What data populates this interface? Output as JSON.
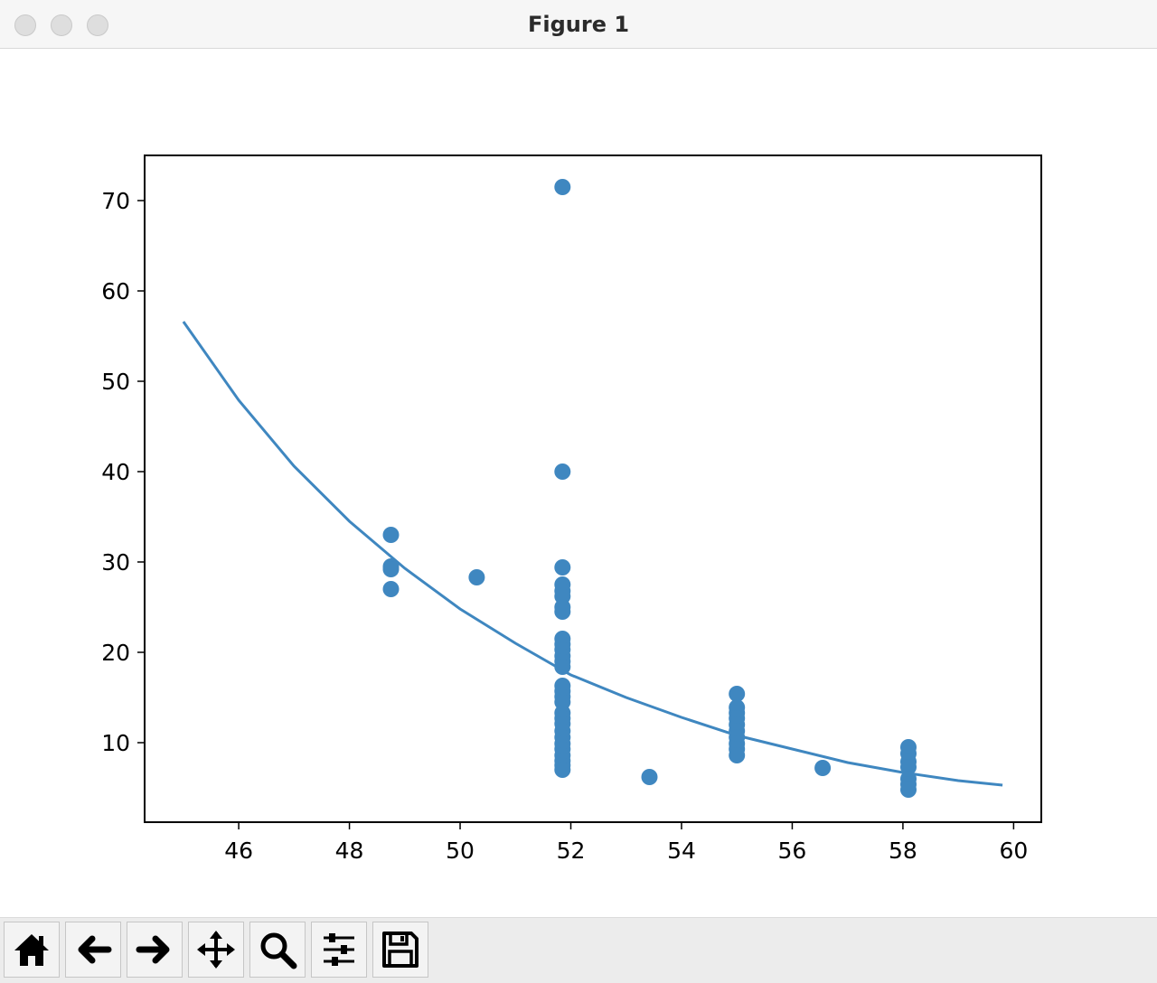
{
  "window": {
    "title": "Figure 1"
  },
  "toolbar": {
    "buttons": [
      {
        "name": "home",
        "icon": "home-icon"
      },
      {
        "name": "back",
        "icon": "arrow-left-icon"
      },
      {
        "name": "forward",
        "icon": "arrow-right-icon"
      },
      {
        "name": "pan",
        "icon": "move-icon"
      },
      {
        "name": "zoom",
        "icon": "magnifier-icon"
      },
      {
        "name": "configure-subplots",
        "icon": "sliders-icon"
      },
      {
        "name": "save",
        "icon": "floppy-disk-icon"
      }
    ]
  },
  "chart_data": {
    "type": "scatter",
    "title": "",
    "xlabel": "",
    "ylabel": "",
    "xlim": [
      44.3,
      60.5
    ],
    "ylim": [
      1.2,
      75
    ],
    "xticks": [
      46,
      48,
      50,
      52,
      54,
      56,
      58,
      60
    ],
    "yticks": [
      10,
      20,
      30,
      40,
      50,
      60,
      70
    ],
    "grid": false,
    "color": "#3f87c0",
    "series": [
      {
        "kind": "scatter",
        "points": [
          [
            48.75,
            33.0
          ],
          [
            48.75,
            29.5
          ],
          [
            48.75,
            29.2
          ],
          [
            48.75,
            27.0
          ],
          [
            50.3,
            28.3
          ],
          [
            51.85,
            71.5
          ],
          [
            51.85,
            40.0
          ],
          [
            51.85,
            29.4
          ],
          [
            51.85,
            27.5
          ],
          [
            51.85,
            26.8
          ],
          [
            51.85,
            26.2
          ],
          [
            51.85,
            25.0
          ],
          [
            51.85,
            24.5
          ],
          [
            51.85,
            21.5
          ],
          [
            51.85,
            20.9
          ],
          [
            51.85,
            20.3
          ],
          [
            51.85,
            19.6
          ],
          [
            51.85,
            19.0
          ],
          [
            51.85,
            18.4
          ],
          [
            51.85,
            16.3
          ],
          [
            51.85,
            15.7
          ],
          [
            51.85,
            15.1
          ],
          [
            51.85,
            14.5
          ],
          [
            51.85,
            13.3
          ],
          [
            51.85,
            12.7
          ],
          [
            51.85,
            12.1
          ],
          [
            51.85,
            11.3
          ],
          [
            51.85,
            10.6
          ],
          [
            51.85,
            9.9
          ],
          [
            51.85,
            9.3
          ],
          [
            51.85,
            8.6
          ],
          [
            51.85,
            8.0
          ],
          [
            51.85,
            7.5
          ],
          [
            51.85,
            7.0
          ],
          [
            53.42,
            6.2
          ],
          [
            55.0,
            15.4
          ],
          [
            55.0,
            13.9
          ],
          [
            55.0,
            13.3
          ],
          [
            55.0,
            12.7
          ],
          [
            55.0,
            12.0
          ],
          [
            55.0,
            11.3
          ],
          [
            55.0,
            10.6
          ],
          [
            55.0,
            9.9
          ],
          [
            55.0,
            9.3
          ],
          [
            55.0,
            8.6
          ],
          [
            56.55,
            7.2
          ],
          [
            58.1,
            9.5
          ],
          [
            58.1,
            8.8
          ],
          [
            58.1,
            7.9
          ],
          [
            58.1,
            7.3
          ],
          [
            58.1,
            6.0
          ],
          [
            58.1,
            5.4
          ],
          [
            58.1,
            4.8
          ]
        ]
      },
      {
        "kind": "line",
        "points": [
          [
            45.0,
            56.6
          ],
          [
            46.0,
            47.9
          ],
          [
            47.0,
            40.6
          ],
          [
            48.0,
            34.5
          ],
          [
            49.0,
            29.3
          ],
          [
            50.0,
            24.8
          ],
          [
            51.0,
            21.0
          ],
          [
            52.0,
            17.5
          ],
          [
            53.0,
            15.0
          ],
          [
            54.0,
            12.8
          ],
          [
            55.0,
            10.8
          ],
          [
            56.0,
            9.3
          ],
          [
            57.0,
            7.8
          ],
          [
            58.0,
            6.7
          ],
          [
            59.0,
            5.8
          ],
          [
            59.8,
            5.3
          ]
        ]
      }
    ]
  }
}
